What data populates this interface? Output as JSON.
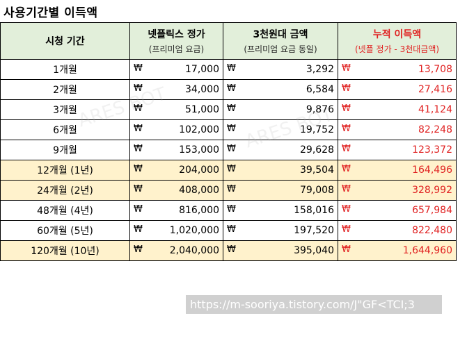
{
  "title": "사용기간별 이득액",
  "headers": [
    {
      "label": "시청 기간",
      "sub": ""
    },
    {
      "label": "넷플릭스 정가",
      "sub": "(프리미엄 요금)"
    },
    {
      "label": "3천원대 금액",
      "sub": "(프리미엄 요금 동일)"
    },
    {
      "label": "누적 이득액",
      "sub": "(넷플 정가 - 3천대금액)"
    }
  ],
  "currency": "₩",
  "rows": [
    {
      "period": "1개월",
      "netflix": "17,000",
      "cheap": "3,292",
      "profit": "13,708",
      "highlight": false
    },
    {
      "period": "2개월",
      "netflix": "34,000",
      "cheap": "6,584",
      "profit": "27,416",
      "highlight": false
    },
    {
      "period": "3개월",
      "netflix": "51,000",
      "cheap": "9,876",
      "profit": "41,124",
      "highlight": false
    },
    {
      "period": "6개월",
      "netflix": "102,000",
      "cheap": "19,752",
      "profit": "82,248",
      "highlight": false
    },
    {
      "period": "9개월",
      "netflix": "153,000",
      "cheap": "29,628",
      "profit": "123,372",
      "highlight": false
    },
    {
      "period": "12개월 (1년)",
      "netflix": "204,000",
      "cheap": "39,504",
      "profit": "164,496",
      "highlight": true
    },
    {
      "period": "24개월 (2년)",
      "netflix": "408,000",
      "cheap": "79,008",
      "profit": "328,992",
      "highlight": true
    },
    {
      "period": "48개월 (4년)",
      "netflix": "816,000",
      "cheap": "158,016",
      "profit": "657,984",
      "highlight": false
    },
    {
      "period": "60개월 (5년)",
      "netflix": "1,020,000",
      "cheap": "197,520",
      "profit": "822,480",
      "highlight": false
    },
    {
      "period": "120개월 (10년)",
      "netflix": "2,040,000",
      "cheap": "395,040",
      "profit": "1,644,960",
      "highlight": true
    }
  ],
  "url_caption": "https://m-sooriya.tistory.com/J\"GF<TCI;3",
  "colors": {
    "header_bg": "#e2efda",
    "highlight_bg": "#fff2cc",
    "profit_red": "#e02020"
  }
}
